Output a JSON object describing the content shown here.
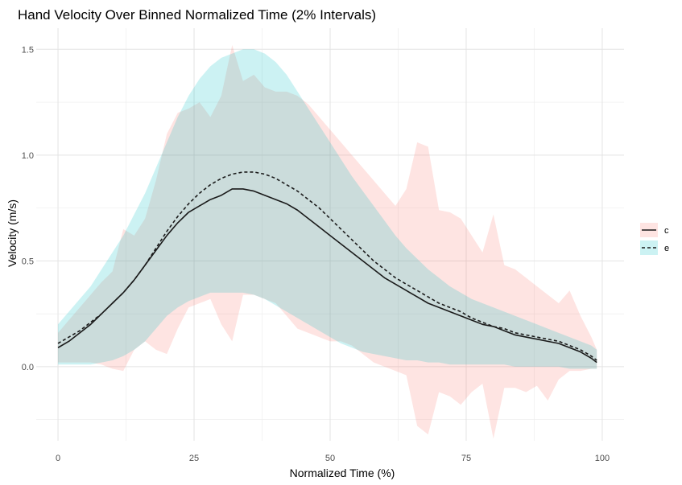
{
  "chart_data": {
    "type": "line",
    "title": "Hand Velocity Over Binned Normalized Time (2% Intervals)",
    "xlabel": "Normalized Time (%)",
    "ylabel": "Velocity (m/s)",
    "xlim": [
      -4,
      104
    ],
    "ylim": [
      -0.35,
      1.6
    ],
    "x_ticks": [
      0,
      25,
      50,
      75,
      100
    ],
    "y_ticks": [
      0.0,
      0.5,
      1.0,
      1.5
    ],
    "x_tick_labels": [
      "0",
      "25",
      "50",
      "75",
      "100"
    ],
    "y_tick_labels": [
      "0.0",
      "0.5",
      "1.0",
      "1.5"
    ],
    "grid": true,
    "legend_position": "right",
    "x": [
      0,
      2,
      4,
      6,
      8,
      10,
      12,
      14,
      16,
      18,
      20,
      22,
      24,
      26,
      28,
      30,
      32,
      34,
      36,
      38,
      40,
      42,
      44,
      46,
      48,
      50,
      52,
      54,
      56,
      58,
      60,
      62,
      64,
      66,
      68,
      70,
      72,
      74,
      76,
      78,
      80,
      82,
      84,
      86,
      88,
      90,
      92,
      94,
      96,
      98,
      99
    ],
    "series": [
      {
        "name": "c",
        "color": "#F8766D",
        "line_color": "#1a1a1a",
        "line_style": "solid",
        "mean": [
          0.09,
          0.12,
          0.16,
          0.2,
          0.25,
          0.3,
          0.35,
          0.41,
          0.48,
          0.55,
          0.62,
          0.68,
          0.73,
          0.76,
          0.79,
          0.81,
          0.84,
          0.84,
          0.83,
          0.81,
          0.79,
          0.77,
          0.74,
          0.7,
          0.66,
          0.62,
          0.58,
          0.54,
          0.5,
          0.46,
          0.42,
          0.39,
          0.36,
          0.33,
          0.3,
          0.28,
          0.26,
          0.24,
          0.22,
          0.2,
          0.19,
          0.17,
          0.15,
          0.14,
          0.13,
          0.12,
          0.11,
          0.09,
          0.07,
          0.04,
          0.02
        ],
        "upper": [
          0.16,
          0.22,
          0.28,
          0.34,
          0.4,
          0.45,
          0.65,
          0.62,
          0.7,
          0.88,
          1.1,
          1.2,
          1.22,
          1.25,
          1.18,
          1.28,
          1.52,
          1.35,
          1.38,
          1.32,
          1.3,
          1.3,
          1.28,
          1.24,
          1.18,
          1.12,
          1.06,
          1.0,
          0.94,
          0.88,
          0.82,
          0.76,
          0.84,
          1.06,
          1.04,
          0.74,
          0.73,
          0.7,
          0.62,
          0.54,
          0.72,
          0.48,
          0.46,
          0.42,
          0.38,
          0.34,
          0.3,
          0.36,
          0.24,
          0.14,
          0.08
        ],
        "lower": [
          0.02,
          0.02,
          0.02,
          0.02,
          0.01,
          -0.01,
          -0.02,
          0.08,
          0.12,
          0.08,
          0.06,
          0.18,
          0.28,
          0.3,
          0.32,
          0.2,
          0.12,
          0.34,
          0.34,
          0.32,
          0.3,
          0.24,
          0.18,
          0.16,
          0.14,
          0.12,
          0.12,
          0.1,
          0.06,
          0.02,
          0.0,
          -0.02,
          -0.04,
          -0.28,
          -0.32,
          -0.12,
          -0.14,
          -0.18,
          -0.12,
          -0.08,
          -0.34,
          -0.1,
          -0.1,
          -0.12,
          -0.09,
          -0.16,
          -0.06,
          -0.02,
          -0.02,
          -0.01,
          -0.01
        ]
      },
      {
        "name": "e",
        "color": "#00BFC4",
        "line_color": "#1a1a1a",
        "line_style": "dashed",
        "mean": [
          0.11,
          0.14,
          0.17,
          0.21,
          0.25,
          0.3,
          0.35,
          0.41,
          0.48,
          0.56,
          0.64,
          0.71,
          0.77,
          0.82,
          0.86,
          0.89,
          0.91,
          0.92,
          0.92,
          0.91,
          0.89,
          0.86,
          0.83,
          0.79,
          0.75,
          0.7,
          0.65,
          0.6,
          0.55,
          0.5,
          0.46,
          0.42,
          0.39,
          0.36,
          0.33,
          0.3,
          0.28,
          0.26,
          0.23,
          0.21,
          0.19,
          0.18,
          0.16,
          0.15,
          0.14,
          0.13,
          0.12,
          0.1,
          0.08,
          0.05,
          0.03
        ],
        "upper": [
          0.2,
          0.26,
          0.32,
          0.38,
          0.46,
          0.54,
          0.62,
          0.72,
          0.82,
          0.94,
          1.06,
          1.18,
          1.28,
          1.36,
          1.42,
          1.46,
          1.48,
          1.5,
          1.5,
          1.48,
          1.44,
          1.38,
          1.3,
          1.22,
          1.14,
          1.06,
          0.98,
          0.9,
          0.83,
          0.76,
          0.69,
          0.62,
          0.56,
          0.51,
          0.46,
          0.42,
          0.38,
          0.35,
          0.32,
          0.3,
          0.28,
          0.26,
          0.24,
          0.22,
          0.2,
          0.18,
          0.16,
          0.14,
          0.12,
          0.1,
          0.08
        ],
        "lower": [
          0.01,
          0.01,
          0.01,
          0.01,
          0.02,
          0.03,
          0.05,
          0.08,
          0.12,
          0.18,
          0.24,
          0.28,
          0.31,
          0.33,
          0.35,
          0.35,
          0.35,
          0.35,
          0.34,
          0.32,
          0.29,
          0.26,
          0.23,
          0.2,
          0.17,
          0.14,
          0.11,
          0.09,
          0.07,
          0.06,
          0.05,
          0.04,
          0.03,
          0.03,
          0.02,
          0.02,
          0.01,
          0.01,
          0.01,
          0.01,
          0.01,
          0.01,
          0.0,
          0.0,
          0.0,
          0.0,
          0.0,
          -0.01,
          -0.01,
          -0.01,
          -0.01
        ]
      }
    ]
  }
}
